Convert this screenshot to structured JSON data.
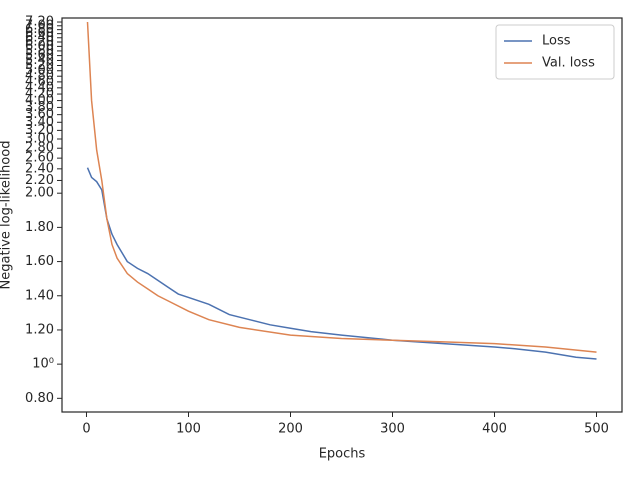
{
  "chart_data": {
    "type": "line",
    "xlabel": "Epochs",
    "ylabel": "Negative log-likelihood",
    "xlim": [
      -24,
      525
    ],
    "xticks": [
      0,
      100,
      200,
      300,
      400,
      500
    ],
    "yscale": "symlog",
    "linthresh": 2,
    "ylim": [
      0.72,
      7.42
    ],
    "yticks": [
      {
        "value": 0.8,
        "label": "0.80"
      },
      {
        "value": 1,
        "label": "10⁰"
      },
      {
        "value": 1.2,
        "label": "1.20"
      },
      {
        "value": 1.4,
        "label": "1.40"
      },
      {
        "value": 1.6,
        "label": "1.60"
      },
      {
        "value": 1.8,
        "label": "1.80"
      },
      {
        "value": 2,
        "label": "2.00"
      },
      {
        "value": 2.2,
        "label": "2.20"
      },
      {
        "value": 2.4,
        "label": "2.40"
      },
      {
        "value": 2.6,
        "label": "2.60"
      },
      {
        "value": 2.8,
        "label": "2.80"
      },
      {
        "value": 3,
        "label": "3.00"
      },
      {
        "value": 3.2,
        "label": "3.20"
      },
      {
        "value": 3.4,
        "label": "3.40"
      },
      {
        "value": 3.6,
        "label": "3.60"
      },
      {
        "value": 3.8,
        "label": "3.80"
      },
      {
        "value": 4,
        "label": "4.00"
      },
      {
        "value": 4.2,
        "label": "4.20"
      },
      {
        "value": 4.4,
        "label": "4.40"
      },
      {
        "value": 4.6,
        "label": "4.60"
      },
      {
        "value": 4.8,
        "label": "4.80"
      },
      {
        "value": 5,
        "label": "5.00"
      },
      {
        "value": 5.2,
        "label": "5.20"
      },
      {
        "value": 5.4,
        "label": "5.40"
      },
      {
        "value": 5.6,
        "label": "5.60"
      },
      {
        "value": 5.8,
        "label": "5.80"
      },
      {
        "value": 6,
        "label": "6.00"
      },
      {
        "value": 6.2,
        "label": "6.20"
      },
      {
        "value": 6.4,
        "label": "6.40"
      },
      {
        "value": 6.6,
        "label": "6.60"
      },
      {
        "value": 6.8,
        "label": "6.80"
      },
      {
        "value": 7,
        "label": "7.00"
      },
      {
        "value": 7.2,
        "label": "7.20"
      }
    ],
    "legend": "upper right",
    "series": [
      {
        "name": "Loss",
        "color": "#4c72b0",
        "x": [
          1,
          5,
          10,
          15,
          20,
          25,
          30,
          40,
          50,
          60,
          70,
          80,
          90,
          100,
          120,
          140,
          160,
          180,
          200,
          220,
          250,
          300,
          350,
          400,
          420,
          450,
          480,
          500
        ],
        "values": [
          2.42,
          2.25,
          2.18,
          2.05,
          1.85,
          1.76,
          1.7,
          1.6,
          1.56,
          1.53,
          1.49,
          1.45,
          1.41,
          1.39,
          1.35,
          1.29,
          1.26,
          1.23,
          1.21,
          1.19,
          1.17,
          1.14,
          1.12,
          1.1,
          1.09,
          1.07,
          1.04,
          1.03
        ]
      },
      {
        "name": "Val. loss",
        "color": "#dd8452",
        "x": [
          1,
          5,
          10,
          15,
          20,
          25,
          30,
          40,
          50,
          60,
          70,
          80,
          100,
          120,
          150,
          200,
          250,
          300,
          350,
          400,
          450,
          500
        ],
        "values": [
          7.2,
          4.0,
          2.76,
          2.2,
          1.85,
          1.7,
          1.62,
          1.53,
          1.48,
          1.44,
          1.4,
          1.37,
          1.31,
          1.26,
          1.215,
          1.17,
          1.15,
          1.14,
          1.13,
          1.12,
          1.1,
          1.07
        ]
      }
    ]
  }
}
